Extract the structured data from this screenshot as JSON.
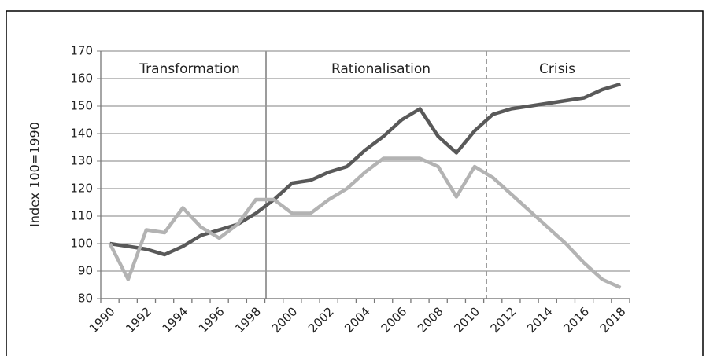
{
  "chart_data": {
    "type": "line",
    "y_label": "Index 100=1990",
    "annotations": [
      "Transformation",
      "Rationalisation",
      "Crisis"
    ],
    "categories": [
      "1990",
      null,
      "1992",
      null,
      "1994",
      null,
      "1996",
      null,
      "1998",
      null,
      "2000",
      null,
      "2002",
      null,
      "2004",
      null,
      "2006",
      null,
      "2008",
      null,
      "2010",
      null,
      "2012",
      null,
      "2014",
      null,
      "2016",
      null,
      "2018"
    ],
    "series": [
      {
        "color": "#595959",
        "values": [
          100,
          99,
          98,
          96,
          99,
          103,
          105,
          107,
          111,
          116,
          122,
          123,
          126,
          128,
          134,
          139,
          145,
          149,
          139,
          133,
          141,
          147,
          149,
          150,
          151,
          152,
          153,
          156,
          158
        ]
      },
      {
        "color": "#b3b3b3",
        "values": [
          100,
          87,
          105,
          104,
          113,
          106,
          102,
          107,
          116,
          116,
          111,
          111,
          116,
          120,
          126,
          131,
          131,
          131,
          128,
          117,
          128,
          124,
          118,
          112,
          106,
          100,
          93,
          87,
          84
        ]
      }
    ],
    "ylim": [
      80,
      170
    ],
    "yticks": [
      80,
      90,
      100,
      110,
      120,
      130,
      140,
      150,
      160,
      170
    ],
    "grid": true
  }
}
